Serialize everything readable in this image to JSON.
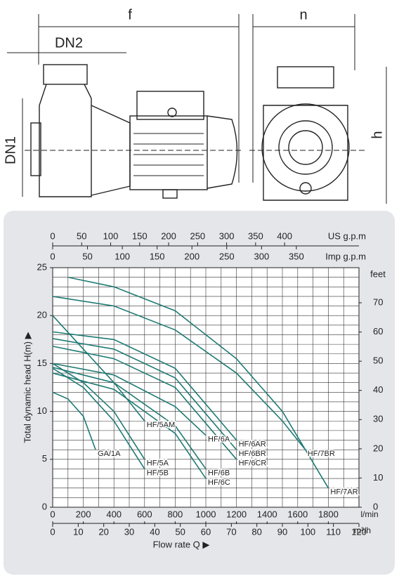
{
  "drawing": {
    "dimension_labels": [
      "f",
      "n",
      "DN2",
      "DN1",
      "h"
    ]
  },
  "chart_data": {
    "type": "line",
    "y_label": "Total dynamic head H(m) ▶",
    "x_title": "Flow rate Q ▶",
    "x_unit": "l/min",
    "xlim": [
      0,
      2000
    ],
    "xticks": [
      0,
      200,
      400,
      600,
      800,
      1000,
      1200,
      1400,
      1600,
      1800
    ],
    "ylim": [
      0,
      25
    ],
    "yticks": [
      0,
      5,
      10,
      15,
      20,
      25
    ],
    "grid": true,
    "minor_grid": {
      "x": 100,
      "y": 1
    },
    "x2": {
      "label": "US g.p.m",
      "lim": [
        0,
        528.3
      ],
      "ticks": [
        0,
        50,
        100,
        150,
        200,
        250,
        300,
        350,
        400
      ]
    },
    "x3": {
      "label": "Imp g.p.m",
      "lim": [
        0,
        439.9
      ],
      "ticks": [
        0,
        50,
        100,
        150,
        200,
        250,
        300,
        350
      ]
    },
    "x4": {
      "label": "m³/h",
      "lim": [
        0,
        120
      ],
      "ticks": [
        0,
        10,
        20,
        30,
        40,
        50,
        60,
        70,
        80,
        90,
        100,
        110,
        120
      ]
    },
    "y2": {
      "label": "feet",
      "lim": [
        0,
        82.02
      ],
      "ticks": [
        0,
        10,
        20,
        30,
        40,
        50,
        60,
        70
      ]
    },
    "color": "#1f7a74",
    "series": [
      {
        "name": "HF/7AR",
        "x": [
          100,
          400,
          800,
          1200,
          1500,
          1800
        ],
        "values": [
          24,
          23,
          20.5,
          15.5,
          10,
          2
        ]
      },
      {
        "name": "HF/7BR",
        "x": [
          0,
          400,
          800,
          1200,
          1500,
          1650
        ],
        "values": [
          22,
          21,
          18.5,
          14,
          9,
          6
        ]
      },
      {
        "name": "HF/6AR",
        "x": [
          0,
          400,
          800,
          1200
        ],
        "values": [
          18.3,
          17.5,
          14.5,
          7
        ]
      },
      {
        "name": "HF/6BR",
        "x": [
          0,
          400,
          800,
          1200
        ],
        "values": [
          17.6,
          16.5,
          13.5,
          6
        ]
      },
      {
        "name": "HF/6CR",
        "x": [
          0,
          400,
          800,
          1200
        ],
        "values": [
          16.8,
          15.5,
          12.5,
          5
        ]
      },
      {
        "name": "HF/6A",
        "x": [
          0,
          400,
          800,
          1000
        ],
        "values": [
          15,
          13.8,
          10.5,
          7.5
        ]
      },
      {
        "name": "HF/6B",
        "x": [
          0,
          400,
          800,
          1000
        ],
        "values": [
          14.6,
          13,
          8.5,
          4
        ]
      },
      {
        "name": "HF/6C",
        "x": [
          0,
          400,
          800,
          1000
        ],
        "values": [
          14,
          12.3,
          7.7,
          3
        ]
      },
      {
        "name": "HF/5AM",
        "x": [
          0,
          200,
          400,
          600
        ],
        "values": [
          20,
          16.5,
          13,
          9
        ]
      },
      {
        "name": "HF/5A",
        "x": [
          0,
          200,
          400,
          600
        ],
        "values": [
          15,
          13,
          10,
          5
        ]
      },
      {
        "name": "HF/5B",
        "x": [
          0,
          200,
          400,
          600
        ],
        "values": [
          14.5,
          12.5,
          9,
          4
        ]
      },
      {
        "name": "GA/1A",
        "x": [
          0,
          100,
          200,
          280
        ],
        "values": [
          12,
          11.3,
          9.5,
          6
        ]
      }
    ]
  }
}
